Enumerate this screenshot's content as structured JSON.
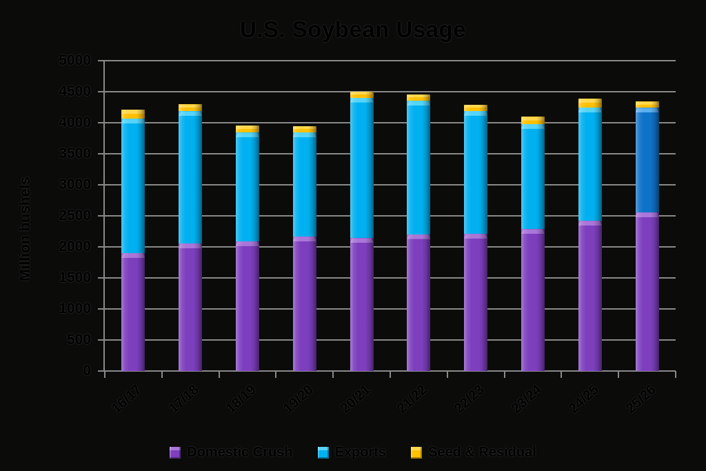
{
  "window": {
    "background": "#0b0b09"
  },
  "title": "U.S. Soybean Usage",
  "y_axis": {
    "label": "Million bushels"
  },
  "colors": {
    "grid": "#8a8a8a",
    "text": "#000000"
  },
  "legend": {
    "entries": [
      {
        "label": "Domestic Crush",
        "color": "#7d3fbe",
        "light": "#aa76d8"
      },
      {
        "label": "Exports",
        "color": "#00b0f0",
        "light": "#55d4fa"
      },
      {
        "label": "Seed & Residual",
        "color": "#ffc000",
        "light": "#ffd84d"
      }
    ]
  },
  "chart_data": {
    "type": "bar",
    "stacked": true,
    "title": "U.S. Soybean Usage",
    "xlabel": "",
    "ylabel": "Million bushels",
    "ylim": [
      0,
      5000
    ],
    "ytick_step": 500,
    "yticks": [
      0,
      500,
      1000,
      1500,
      2000,
      2500,
      3000,
      3500,
      4000,
      4500,
      5000
    ],
    "grid": "horizontal",
    "legend_position": "bottom",
    "categories": [
      "16/17",
      "17/18",
      "18/19",
      "19/20",
      "20/21",
      "21/22",
      "22/23",
      "23/24",
      "24/25",
      "25/26"
    ],
    "series": [
      {
        "name": "Domestic Crush",
        "color": "#7d3fbe",
        "light": "#aa76d8",
        "values": [
          1900,
          2055,
          2090,
          2165,
          2140,
          2205,
          2210,
          2285,
          2420,
          2555
        ]
      },
      {
        "name": "Exports",
        "color": "#00b0f0",
        "light": "#55d4fa",
        "values": [
          2165,
          2130,
          1750,
          1680,
          2265,
          2150,
          1980,
          1695,
          1825,
          1685
        ],
        "value_styles": {
          "9": {
            "color": "#0e72c8",
            "light": "#5caeee"
          }
        }
      },
      {
        "name": "Seed & Residual",
        "color": "#ffc000",
        "light": "#ffd84d",
        "values": [
          150,
          110,
          120,
          105,
          100,
          105,
          100,
          115,
          145,
          100
        ]
      }
    ]
  }
}
